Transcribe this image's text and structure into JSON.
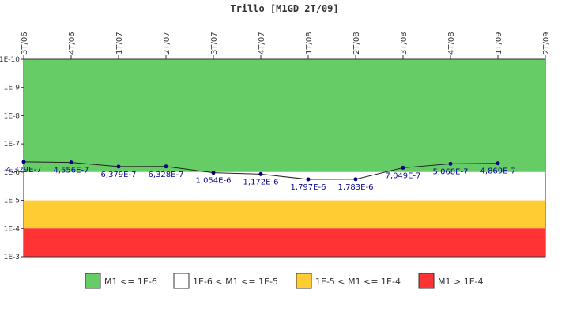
{
  "chart_data": {
    "type": "line",
    "title": "Trillo [M1GD 2T/09]",
    "categories": [
      "3T/06",
      "4T/06",
      "1T/07",
      "2T/07",
      "3T/07",
      "4T/07",
      "1T/08",
      "2T/08",
      "3T/08",
      "4T/08",
      "1T/09",
      "2T/09"
    ],
    "series": [
      {
        "values": [
          4.329e-07,
          4.556e-07,
          6.379e-07,
          6.328e-07,
          1.054e-06,
          1.172e-06,
          1.797e-06,
          1.783e-06,
          7.049e-07,
          5.068e-07,
          4.869e-07,
          null
        ],
        "labels": [
          "4,329E-7",
          "4,556E-7",
          "6,379E-7",
          "6,328E-7",
          "1,054E-6",
          "1,172E-6",
          "1,797E-6",
          "1,783E-6",
          "7,049E-7",
          "5,068E-7",
          "4,869E-7",
          ""
        ],
        "color": "#000080"
      }
    ],
    "y_scale": "log",
    "y_direction": "inverted",
    "ylim": [
      1e-10,
      0.001
    ],
    "y_ticks": [
      "1E-10",
      "1E-9",
      "1E-8",
      "1E-7",
      "1E-6",
      "1E-5",
      "1E-4",
      "1E-3"
    ],
    "bands": [
      {
        "label": "M1 <= 1E-6",
        "from": 1e-10,
        "to": 1e-06,
        "color": "#66cc66"
      },
      {
        "label": "1E-6 < M1 <= 1E-5",
        "from": 1e-06,
        "to": 1e-05,
        "color": "#ffffff"
      },
      {
        "label": "1E-5 < M1 <= 1E-4",
        "from": 1e-05,
        "to": 0.0001,
        "color": "#ffcc33"
      },
      {
        "label": "M1 > 1E-4",
        "from": 0.0001,
        "to": 0.001,
        "color": "#ff3333"
      }
    ],
    "legend_position": "bottom",
    "grid": false
  }
}
